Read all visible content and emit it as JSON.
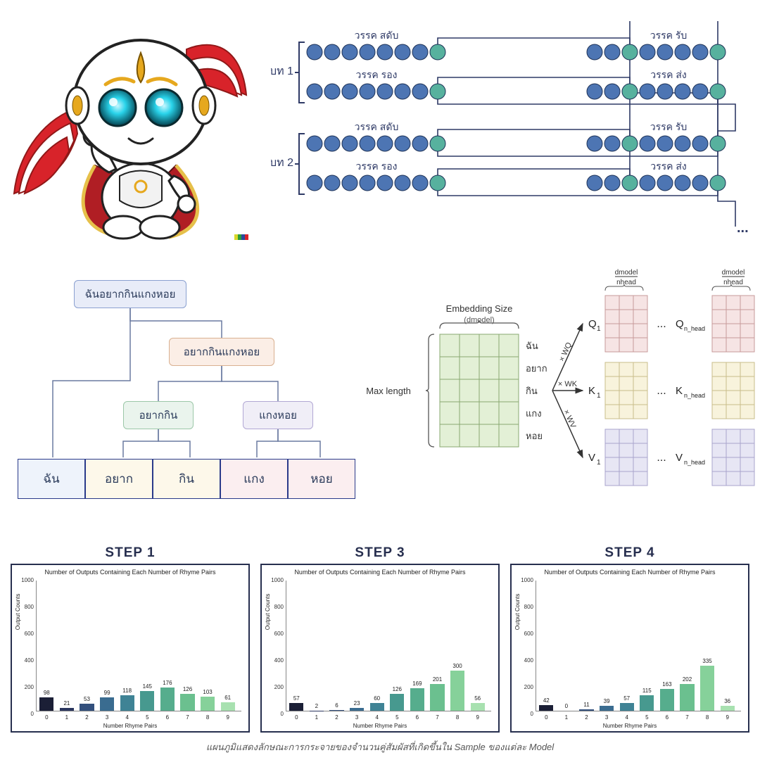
{
  "palette": {
    "node_blue": "#4d75b3",
    "node_green": "#57b19e",
    "bracket": "#2f3a66",
    "text_dark": "#2a3a5a"
  },
  "robot": {
    "ribbon_colors": [
      "#d8232a",
      "#ffffff"
    ],
    "body_color": "#ffffff",
    "outline": "#1a1a1a",
    "eye_color": "#0fc7e0",
    "eye_glow": "#7de9f5",
    "gold": "#e6a81e",
    "cape": "#b01e24",
    "cape_trim": "#e6c04a"
  },
  "rhyme": {
    "stanzas": [
      {
        "label": "บท 1",
        "lines": [
          {
            "left_label": "วรรค สดับ",
            "right_label": "วรรค รับ",
            "left_nodes": [
              "b",
              "b",
              "b",
              "b",
              "b",
              "b",
              "b",
              "g"
            ],
            "right_nodes": [
              "b",
              "b",
              "g",
              "b",
              "b",
              "b",
              "b",
              "g"
            ]
          },
          {
            "left_label": "วรรค รอง",
            "right_label": "วรรค ส่ง",
            "left_nodes": [
              "b",
              "b",
              "b",
              "b",
              "b",
              "b",
              "b",
              "g"
            ],
            "right_nodes": [
              "b",
              "b",
              "g",
              "b",
              "b",
              "b",
              "b",
              "g"
            ]
          }
        ]
      },
      {
        "label": "บท 2",
        "lines": [
          {
            "left_label": "วรรค สดับ",
            "right_label": "วรรค รับ",
            "left_nodes": [
              "b",
              "b",
              "b",
              "b",
              "b",
              "b",
              "b",
              "g"
            ],
            "right_nodes": [
              "b",
              "b",
              "g",
              "b",
              "b",
              "b",
              "b",
              "g"
            ]
          },
          {
            "left_label": "วรรค รอง",
            "right_label": "วรรค ส่ง",
            "left_nodes": [
              "b",
              "b",
              "b",
              "b",
              "b",
              "b",
              "b",
              "g"
            ],
            "right_nodes": [
              "b",
              "b",
              "g",
              "b",
              "b",
              "b",
              "b",
              "g"
            ]
          }
        ]
      }
    ],
    "ellipsis": "..."
  },
  "tree": {
    "root": {
      "text": "ฉันอยากกินแกงหอย",
      "fill": "#e8ecf8",
      "stroke": "#8aa0d0"
    },
    "n1": {
      "text": "อยากกินแกงหอย",
      "fill": "#fbeee6",
      "stroke": "#d9b090"
    },
    "n2a": {
      "text": "อยากกิน",
      "fill": "#eaf4ed",
      "stroke": "#9cc7a8"
    },
    "n2b": {
      "text": "แกงหอย",
      "fill": "#f0eef7",
      "stroke": "#b2a8d4"
    },
    "leaves": [
      {
        "text": "ฉัน",
        "fill": "#eef3fb"
      },
      {
        "text": "อยาก",
        "fill": "#fdf8ea"
      },
      {
        "text": "กิน",
        "fill": "#fdf8ea"
      },
      {
        "text": "แกง",
        "fill": "#fbeef0"
      },
      {
        "text": "หอย",
        "fill": "#fbeef0"
      }
    ],
    "line_color": "#6a7aa0"
  },
  "attn": {
    "top_label": "Embedding Size",
    "top_sub": "(dmodel)",
    "left_label": "Max length",
    "tokens": [
      "ฉัน",
      "อยาก",
      "กิน",
      "แกง",
      "หอย"
    ],
    "input_fill": "#e3f0d6",
    "input_stroke": "#88a870",
    "arrows": [
      {
        "label": "× WQ",
        "out": "Q",
        "fill": "#f6e4e4",
        "stroke": "#c79a9a"
      },
      {
        "label": "× WK",
        "out": "K",
        "fill": "#f8f3dc",
        "stroke": "#c9bc8a"
      },
      {
        "label": "× WV",
        "out": "V",
        "fill": "#e7e6f4",
        "stroke": "#a8a4cc"
      }
    ],
    "head_frac_top": "dmodel",
    "head_frac_bot": "nhead",
    "ellipsis": "...",
    "subscript_1": "1",
    "subscript_n": "n_head"
  },
  "charts": {
    "ylabel": "Output Counts",
    "xlabel": "Number Rhyme Pairs",
    "subtitle": "Number of Outputs Containing Each Number of Rhyme Pairs",
    "ylim": [
      0,
      1000
    ],
    "ytick_step": 200,
    "x_categories": [
      0,
      1,
      2,
      3,
      4,
      5,
      6,
      7,
      8,
      9
    ],
    "bar_colors": [
      "#1b1f36",
      "#2a355e",
      "#33507d",
      "#3a6c90",
      "#3f8395",
      "#47998f",
      "#56ad8d",
      "#6bc08f",
      "#86d19a",
      "#a8e1b0"
    ],
    "panels": [
      {
        "title": "STEP 1",
        "values": [
          98,
          21,
          53,
          99,
          118,
          145,
          176,
          126,
          103,
          61
        ]
      },
      {
        "title": "STEP 3",
        "values": [
          57,
          2,
          6,
          23,
          60,
          126,
          169,
          201,
          300,
          56
        ]
      },
      {
        "title": "STEP 4",
        "values": [
          42,
          0,
          11,
          39,
          57,
          115,
          163,
          202,
          335,
          36
        ]
      }
    ]
  },
  "caption": "แผนภูมิแสดงลักษณะการกระจายของจำนวนคู่สัมผัสที่เกิดขึ้นใน Sample ของแต่ละ Model"
}
